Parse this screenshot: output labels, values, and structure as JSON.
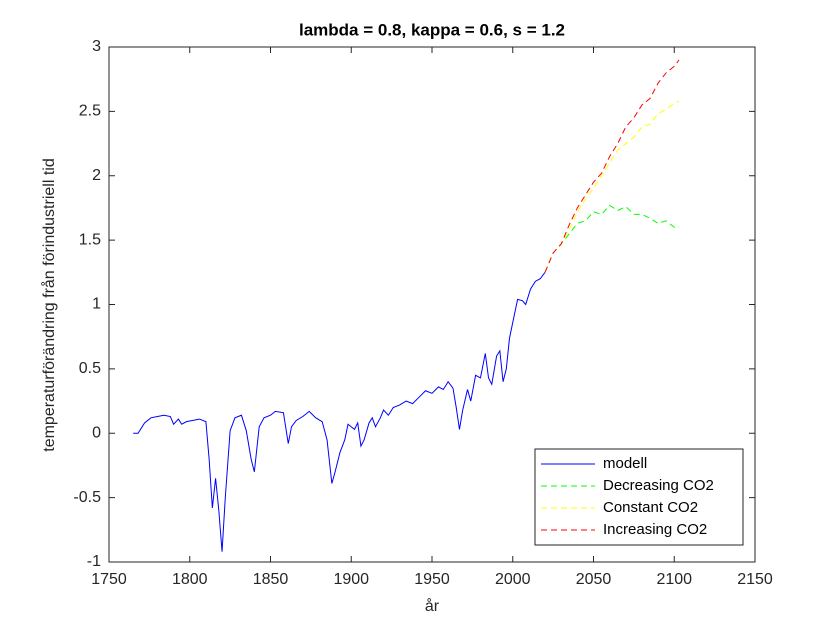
{
  "chart_data": {
    "type": "line",
    "title": "lambda = 0.8, kappa = 0.6, s = 1.2",
    "x_label": "år",
    "y_label": "temperaturförändring från förindustriell tid",
    "xlim": [
      1750,
      2150
    ],
    "xticks": [
      1750,
      1800,
      1850,
      1900,
      1950,
      2000,
      2050,
      2100,
      2150
    ],
    "ylim": [
      -1,
      3
    ],
    "yticks": [
      -1,
      -0.5,
      0,
      0.5,
      1,
      1.5,
      2,
      2.5,
      3
    ],
    "grid": false,
    "legend_position": "lower-right",
    "series": [
      {
        "name": "modell",
        "color": "#0000ff",
        "dashed": false,
        "x": [
          1765,
          1768,
          1772,
          1776,
          1780,
          1784,
          1788,
          1790,
          1793,
          1795,
          1798,
          1802,
          1806,
          1810,
          1812,
          1814,
          1816,
          1818,
          1820,
          1822,
          1825,
          1828,
          1832,
          1835,
          1838,
          1840,
          1843,
          1846,
          1850,
          1853,
          1858,
          1861,
          1863,
          1866,
          1870,
          1874,
          1878,
          1882,
          1885,
          1888,
          1890,
          1893,
          1896,
          1898,
          1902,
          1904,
          1906,
          1908,
          1911,
          1913,
          1915,
          1918,
          1920,
          1923,
          1926,
          1930,
          1934,
          1938,
          1942,
          1946,
          1950,
          1954,
          1957,
          1960,
          1963,
          1965,
          1967,
          1969,
          1972,
          1974,
          1977,
          1980,
          1983,
          1985,
          1987,
          1990,
          1992,
          1994,
          1996,
          1998,
          2000,
          2003,
          2006,
          2008,
          2011,
          2014,
          2017,
          2020
        ],
        "values": [
          0,
          0,
          0.08,
          0.12,
          0.13,
          0.14,
          0.13,
          0.07,
          0.11,
          0.07,
          0.09,
          0.1,
          0.11,
          0.09,
          -0.2,
          -0.58,
          -0.35,
          -0.6,
          -0.92,
          -0.5,
          0.02,
          0.12,
          0.14,
          0.02,
          -0.2,
          -0.3,
          0.05,
          0.12,
          0.14,
          0.17,
          0.16,
          -0.08,
          0.05,
          0.1,
          0.13,
          0.17,
          0.12,
          0.09,
          -0.05,
          -0.39,
          -0.3,
          -0.15,
          -0.05,
          0.07,
          0.03,
          0.08,
          -0.1,
          -0.05,
          0.08,
          0.12,
          0.05,
          0.12,
          0.18,
          0.14,
          0.2,
          0.22,
          0.25,
          0.23,
          0.28,
          0.33,
          0.31,
          0.36,
          0.34,
          0.4,
          0.35,
          0.2,
          0.03,
          0.18,
          0.34,
          0.25,
          0.45,
          0.43,
          0.62,
          0.43,
          0.38,
          0.6,
          0.64,
          0.4,
          0.5,
          0.74,
          0.86,
          1.04,
          1.03,
          1.0,
          1.12,
          1.18,
          1.2,
          1.25
        ]
      },
      {
        "name": "Decreasing CO2",
        "color": "#00ff00",
        "dashed": true,
        "x": [
          2020,
          2025,
          2030,
          2035,
          2040,
          2045,
          2050,
          2055,
          2060,
          2065,
          2070,
          2075,
          2080,
          2085,
          2090,
          2095,
          2100,
          2103
        ],
        "values": [
          1.25,
          1.4,
          1.47,
          1.55,
          1.63,
          1.65,
          1.72,
          1.7,
          1.77,
          1.73,
          1.76,
          1.7,
          1.7,
          1.67,
          1.63,
          1.65,
          1.6,
          1.6
        ]
      },
      {
        "name": "Constant CO2",
        "color": "#ffff00",
        "dashed": true,
        "x": [
          2020,
          2025,
          2030,
          2035,
          2040,
          2045,
          2050,
          2055,
          2060,
          2065,
          2070,
          2075,
          2080,
          2085,
          2090,
          2095,
          2100,
          2103
        ],
        "values": [
          1.25,
          1.4,
          1.47,
          1.58,
          1.72,
          1.82,
          1.9,
          2.0,
          2.1,
          2.2,
          2.25,
          2.3,
          2.38,
          2.4,
          2.48,
          2.52,
          2.56,
          2.58
        ]
      },
      {
        "name": "Increasing CO2",
        "color": "#ff0000",
        "dashed": true,
        "x": [
          2020,
          2025,
          2030,
          2035,
          2040,
          2045,
          2050,
          2055,
          2060,
          2065,
          2070,
          2075,
          2080,
          2085,
          2090,
          2095,
          2100,
          2103
        ],
        "values": [
          1.25,
          1.4,
          1.47,
          1.62,
          1.75,
          1.85,
          1.95,
          2.02,
          2.15,
          2.25,
          2.38,
          2.45,
          2.55,
          2.6,
          2.72,
          2.8,
          2.85,
          2.9
        ]
      }
    ]
  }
}
